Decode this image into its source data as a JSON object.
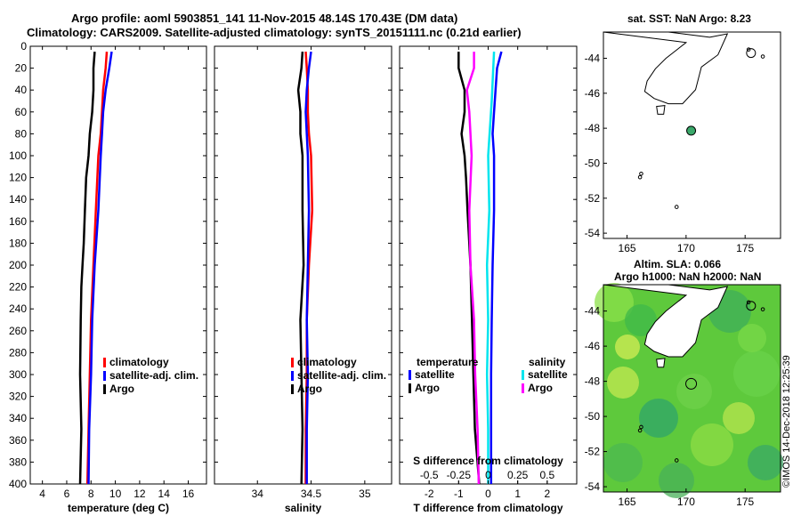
{
  "titles": {
    "line1": "Argo profile: aoml 5903851_141 11-Nov-2015 48.14S 170.43E (DM data)",
    "line2": "Climatology: CARS2009. Satellite-adjusted climatology: synTS_20151111.nc (0.21d earlier)"
  },
  "chart_data": [
    {
      "type": "line",
      "xlabel": "temperature (deg C)",
      "ylabel": "",
      "xlim": [
        3,
        17.5
      ],
      "ylim": [
        400,
        0
      ],
      "xticks": [
        "4",
        "6",
        "8",
        "10",
        "12",
        "14",
        "16"
      ],
      "yticks": [
        "0",
        "20",
        "40",
        "60",
        "80",
        "100",
        "120",
        "140",
        "160",
        "180",
        "200",
        "220",
        "240",
        "260",
        "280",
        "300",
        "320",
        "340",
        "360",
        "380",
        "400"
      ],
      "legend": [
        "climatology",
        "satellite-adj. clim.",
        "Argo"
      ],
      "series": [
        {
          "name": "climatology",
          "color": "#ff0000",
          "depth": [
            5,
            20,
            40,
            60,
            80,
            100,
            150,
            200,
            250,
            300,
            350,
            400
          ],
          "values": [
            9.3,
            9.2,
            9.0,
            8.9,
            8.8,
            8.6,
            8.4,
            8.2,
            8.0,
            7.9,
            7.8,
            7.7
          ]
        },
        {
          "name": "satellite-adj. clim.",
          "color": "#0000ff",
          "depth": [
            5,
            20,
            40,
            60,
            80,
            100,
            150,
            200,
            250,
            300,
            350,
            400
          ],
          "values": [
            9.7,
            9.5,
            9.2,
            9.0,
            8.9,
            8.8,
            8.6,
            8.3,
            8.1,
            8.0,
            7.85,
            7.8
          ]
        },
        {
          "name": "Argo",
          "color": "#000000",
          "depth": [
            5,
            20,
            40,
            60,
            80,
            100,
            120,
            150,
            180,
            200,
            220,
            250,
            300,
            350,
            400
          ],
          "values": [
            8.3,
            8.2,
            8.2,
            8.1,
            7.9,
            7.8,
            7.6,
            7.5,
            7.4,
            7.3,
            7.2,
            7.15,
            7.1,
            7.2,
            7.1
          ]
        }
      ]
    },
    {
      "type": "line",
      "xlabel": "salinity",
      "ylabel": "",
      "xlim": [
        33.6,
        35.25
      ],
      "ylim": [
        400,
        0
      ],
      "xticks": [
        "34",
        "34.5",
        "35"
      ],
      "legend": [
        "climatology",
        "satellite-adj. clim.",
        "Argo"
      ],
      "series": [
        {
          "name": "climatology",
          "color": "#ff0000",
          "depth": [
            5,
            20,
            40,
            60,
            80,
            100,
            150,
            200,
            250,
            300,
            350,
            400
          ],
          "values": [
            34.45,
            34.46,
            34.47,
            34.47,
            34.48,
            34.5,
            34.51,
            34.48,
            34.46,
            34.46,
            34.45,
            34.45
          ]
        },
        {
          "name": "satellite-adj. clim.",
          "color": "#0000ff",
          "depth": [
            5,
            20,
            40,
            60,
            80,
            100,
            150,
            200,
            250,
            300,
            350,
            400
          ],
          "values": [
            34.5,
            34.48,
            34.46,
            34.45,
            34.46,
            34.47,
            34.48,
            34.47,
            34.46,
            34.47,
            34.46,
            34.46
          ]
        },
        {
          "name": "Argo",
          "color": "#000000",
          "depth": [
            5,
            20,
            40,
            60,
            80,
            100,
            150,
            200,
            250,
            300,
            350,
            400
          ],
          "values": [
            34.42,
            34.41,
            34.38,
            34.4,
            34.4,
            34.42,
            34.42,
            34.43,
            34.4,
            34.41,
            34.42,
            34.41
          ]
        }
      ]
    },
    {
      "type": "line",
      "xlabel": "T difference from climatology",
      "xlabel2": "S difference from climatology",
      "ylabel": "",
      "xlim": [
        -3,
        3
      ],
      "ylim": [
        400,
        0
      ],
      "xticks": [
        "-2",
        "-1",
        "0",
        "1",
        "2"
      ],
      "xticks2": [
        "-0.5",
        "-0.25",
        "0",
        "0.25",
        "0.5"
      ],
      "legend_temperature_title": "temperature",
      "legend_salinity_title": "salinity",
      "legend": [
        "satellite",
        "Argo",
        "satellite",
        "Argo"
      ],
      "series": [
        {
          "name": "temperature satellite",
          "color": "#0000ff",
          "depth": [
            5,
            20,
            40,
            60,
            80,
            100,
            150,
            200,
            250,
            300,
            350,
            400
          ],
          "values": [
            0.45,
            0.3,
            0.25,
            0.2,
            0.15,
            0.2,
            0.2,
            0.15,
            0.12,
            0.1,
            0.1,
            0.1
          ]
        },
        {
          "name": "temperature Argo",
          "color": "#000000",
          "depth": [
            5,
            20,
            40,
            60,
            80,
            100,
            120,
            150,
            200,
            250,
            300,
            350,
            400
          ],
          "values": [
            -1.0,
            -1.0,
            -0.8,
            -0.8,
            -0.9,
            -0.8,
            -0.75,
            -0.7,
            -0.6,
            -0.55,
            -0.5,
            -0.45,
            -0.3
          ]
        },
        {
          "name": "salinity satellite",
          "color": "#00e5ee",
          "depth": [
            5,
            50,
            100,
            150,
            200,
            250,
            300,
            350,
            400
          ],
          "values": [
            0.05,
            0.03,
            0.0,
            0.01,
            -0.01,
            0.0,
            -0.01,
            0.0,
            0.0
          ]
        },
        {
          "name": "salinity Argo",
          "color": "#ff00ff",
          "depth": [
            5,
            20,
            40,
            60,
            80,
            100,
            150,
            200,
            250,
            300,
            350,
            400
          ],
          "values": [
            -0.12,
            -0.12,
            -0.18,
            -0.16,
            -0.15,
            -0.14,
            -0.16,
            -0.15,
            -0.12,
            -0.11,
            -0.09,
            -0.08
          ]
        }
      ]
    },
    {
      "type": "scatter",
      "title": "sat. SST: NaN Argo: 8.23",
      "xlim": [
        163,
        178
      ],
      "ylim": [
        -54.3,
        -42.5
      ],
      "xticks": [
        "165",
        "170",
        "175"
      ],
      "yticks": [
        "-44",
        "-46",
        "-48",
        "-50",
        "-52",
        "-54"
      ],
      "profile": {
        "lon": 170.43,
        "lat": -48.14
      }
    },
    {
      "type": "heatmap",
      "title_line1": "Altim. SLA: 0.066",
      "title_line2": "Argo h1000: NaN h2000: NaN",
      "xlim": [
        163,
        178
      ],
      "ylim": [
        -54.3,
        -42.5
      ],
      "xticks": [
        "165",
        "170",
        "175"
      ],
      "yticks": [
        "-44",
        "-46",
        "-48",
        "-50",
        "-52",
        "-54"
      ],
      "profile": {
        "lon": 170.43,
        "lat": -48.14
      }
    }
  ],
  "credit": "©IMOS 14-Dec-2018 12:25:39"
}
